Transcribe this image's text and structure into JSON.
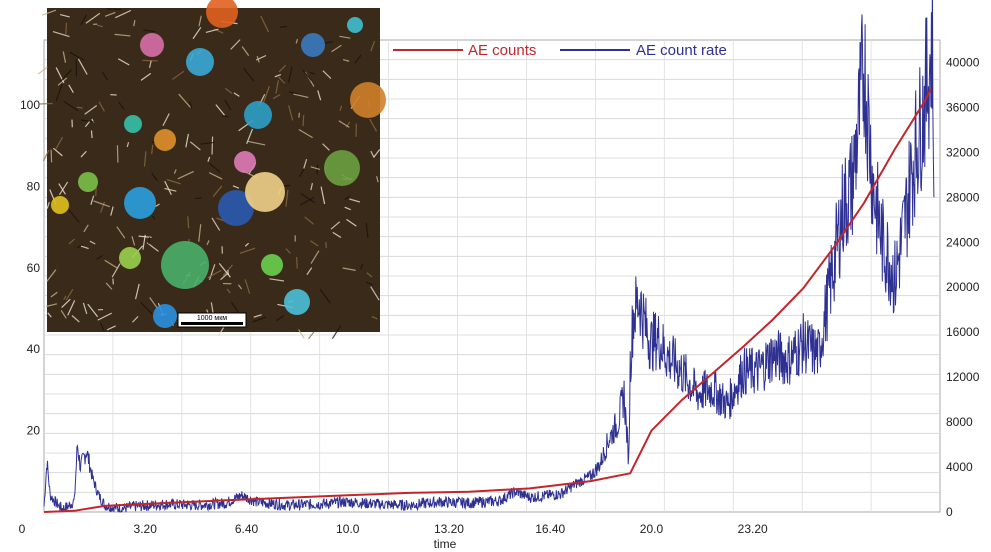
{
  "chart_data": {
    "type": "line",
    "xlabel": "time",
    "x_ticks": [
      "0",
      "3.20",
      "6.40",
      "10.0",
      "13.20",
      "16.40",
      "20.0",
      "23.20"
    ],
    "y_left_ticks": [
      "20",
      "40",
      "60",
      "80",
      "100"
    ],
    "y_left_zero": "0",
    "y_right_ticks": [
      "0",
      "4000",
      "8000",
      "12000",
      "16000",
      "20000",
      "24000",
      "28000",
      "32000",
      "36000",
      "40000"
    ],
    "ylim_left": [
      0,
      116
    ],
    "ylim_right": [
      0,
      42000
    ],
    "xlim": [
      0,
      29.5
    ],
    "grid": true,
    "legend_position": "top",
    "series": [
      {
        "name": "AE counts",
        "color": "#c0272d",
        "axis": "left",
        "x": [
          0,
          1.0,
          2.0,
          4.0,
          6.0,
          8.0,
          10.0,
          12.0,
          14.0,
          16.0,
          18.0,
          19.3,
          20.0,
          21.0,
          22.0,
          23.0,
          24.0,
          25.0,
          26.0,
          27.0,
          28.0,
          29.0,
          29.2
        ],
        "values": [
          0,
          0.3,
          1.5,
          2.2,
          2.9,
          3.5,
          4.1,
          4.7,
          5.0,
          5.8,
          7.6,
          9.5,
          20,
          27.5,
          34,
          40.5,
          47.3,
          55,
          65,
          76,
          89,
          101,
          104
        ]
      },
      {
        "name": "AE count rate",
        "color": "#2e3192",
        "axis": "right",
        "x": [
          0,
          0.1,
          0.2,
          0.4,
          0.6,
          0.8,
          1.0,
          1.1,
          1.2,
          1.4,
          1.6,
          1.8,
          2.0,
          2.5,
          3.0,
          4.0,
          5.0,
          6.0,
          6.5,
          7.0,
          8.0,
          9.0,
          10.0,
          11.0,
          12.0,
          13.0,
          14.0,
          15.0,
          15.5,
          16.0,
          17.0,
          17.5,
          18.0,
          18.3,
          18.6,
          18.9,
          19.1,
          19.25,
          19.3,
          19.4,
          19.6,
          19.8,
          20.0,
          20.2,
          20.5,
          21.0,
          21.5,
          22.0,
          22.5,
          23.0,
          23.5,
          24.0,
          24.5,
          25.0,
          25.5,
          26.0,
          26.3,
          26.6,
          26.8,
          27.0,
          27.3,
          27.6,
          27.9,
          28.0,
          28.3,
          28.6,
          28.9,
          29.1,
          29.25,
          29.3
        ],
        "values": [
          500,
          4500,
          1500,
          800,
          300,
          500,
          1000,
          6000,
          4000,
          5500,
          3000,
          1500,
          600,
          300,
          500,
          700,
          600,
          800,
          1500,
          900,
          600,
          700,
          900,
          700,
          600,
          900,
          800,
          1000,
          1800,
          1300,
          1600,
          2500,
          3200,
          4200,
          6500,
          8000,
          10500,
          4500,
          13000,
          17500,
          19000,
          16500,
          15000,
          15500,
          14000,
          12500,
          10500,
          11000,
          9500,
          12500,
          12500,
          14000,
          13500,
          15000,
          14000,
          22000,
          27000,
          29000,
          34000,
          40000,
          29000,
          24000,
          22000,
          20500,
          25000,
          31000,
          35000,
          38500,
          42000,
          28000
        ]
      }
    ]
  }
}
